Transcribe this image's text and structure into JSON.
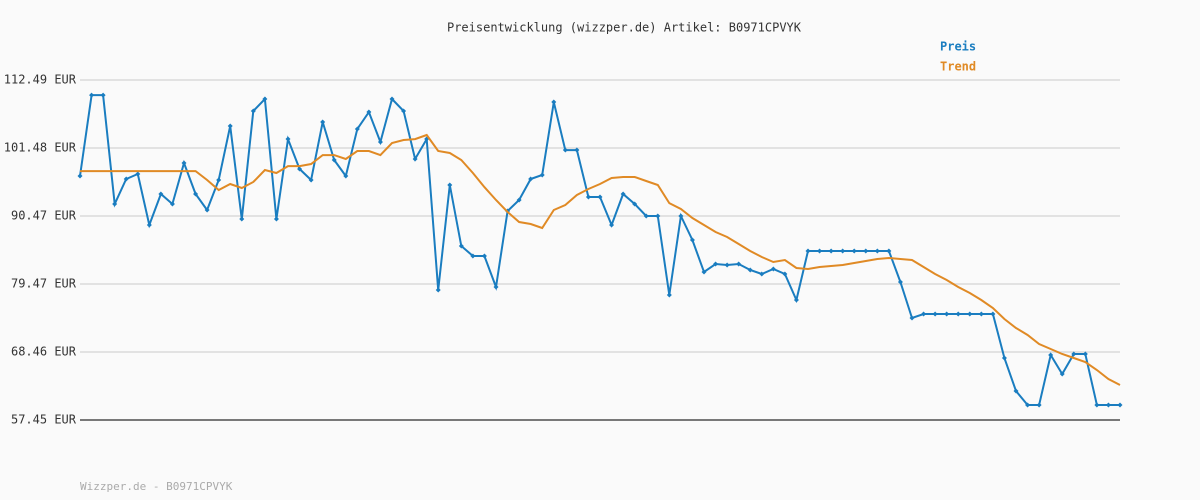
{
  "chart_data": {
    "type": "line",
    "title": "Preisentwicklung (wizzper.de) Artikel: B0971CPVYK",
    "footer": "Wizzper.de - B0971CPVYK",
    "ylim": [
      57.45,
      112.49
    ],
    "yticks": [
      {
        "value": 57.45,
        "label": "57.45 EUR"
      },
      {
        "value": 68.46,
        "label": "68.46 EUR"
      },
      {
        "value": 79.47,
        "label": "79.47 EUR"
      },
      {
        "value": 90.47,
        "label": "90.47 EUR"
      },
      {
        "value": 101.48,
        "label": "101.48 EUR"
      },
      {
        "value": 112.49,
        "label": "112.49 EUR"
      }
    ],
    "grid": true,
    "legend": "top-right",
    "series": [
      {
        "name": "Preis",
        "color": "#1a7dc0",
        "markers": true,
        "values": [
          96.95,
          110.05,
          110.05,
          92.41,
          96.46,
          97.27,
          89.01,
          94.03,
          92.41,
          99.05,
          94.03,
          91.44,
          96.3,
          105.04,
          89.98,
          107.47,
          109.41,
          89.98,
          102.93,
          98.08,
          96.3,
          105.69,
          99.54,
          96.95,
          104.55,
          107.3,
          102.45,
          109.41,
          107.47,
          99.7,
          102.93,
          78.49,
          95.49,
          85.61,
          84.0,
          84.0,
          78.98,
          91.28,
          93.06,
          96.46,
          97.11,
          108.92,
          101.15,
          101.15,
          93.55,
          93.55,
          89.01,
          94.03,
          92.41,
          90.47,
          90.47,
          77.68,
          90.47,
          86.59,
          81.41,
          82.7,
          82.54,
          82.7,
          81.73,
          81.08,
          81.89,
          81.08,
          76.87,
          84.81,
          84.81,
          84.81,
          84.81,
          84.81,
          84.81,
          84.81,
          84.81,
          79.79,
          73.96,
          74.61,
          74.61,
          74.61,
          74.61,
          74.61,
          74.61,
          74.61,
          67.49,
          62.14,
          59.88,
          59.88,
          67.97,
          64.9,
          68.13,
          68.13,
          59.88,
          59.88,
          59.88
        ]
      },
      {
        "name": "Trend",
        "color": "#e08a25",
        "markers": false,
        "values": [
          97.75,
          97.75,
          97.75,
          97.75,
          97.75,
          97.75,
          97.75,
          97.75,
          97.75,
          97.75,
          97.75,
          96.3,
          94.68,
          95.65,
          95.0,
          95.97,
          97.92,
          97.43,
          98.56,
          98.56,
          98.89,
          100.34,
          100.34,
          99.7,
          100.99,
          100.99,
          100.34,
          102.29,
          102.77,
          102.93,
          103.58,
          100.99,
          100.67,
          99.54,
          97.43,
          95.16,
          93.06,
          91.12,
          89.5,
          89.18,
          88.53,
          91.44,
          92.25,
          93.87,
          94.84,
          95.65,
          96.62,
          96.78,
          96.78,
          96.14,
          95.49,
          92.57,
          91.6,
          90.15,
          89.01,
          87.88,
          87.07,
          85.94,
          84.81,
          83.83,
          83.02,
          83.35,
          82.05,
          81.89,
          82.21,
          82.38,
          82.54,
          82.86,
          83.19,
          83.51,
          83.67,
          83.51,
          83.35,
          82.21,
          81.08,
          80.11,
          78.98,
          78.01,
          76.87,
          75.58,
          73.8,
          72.34,
          71.21,
          69.75,
          68.94,
          68.13,
          67.49,
          66.84,
          65.54,
          64.09,
          63.12
        ]
      }
    ]
  }
}
